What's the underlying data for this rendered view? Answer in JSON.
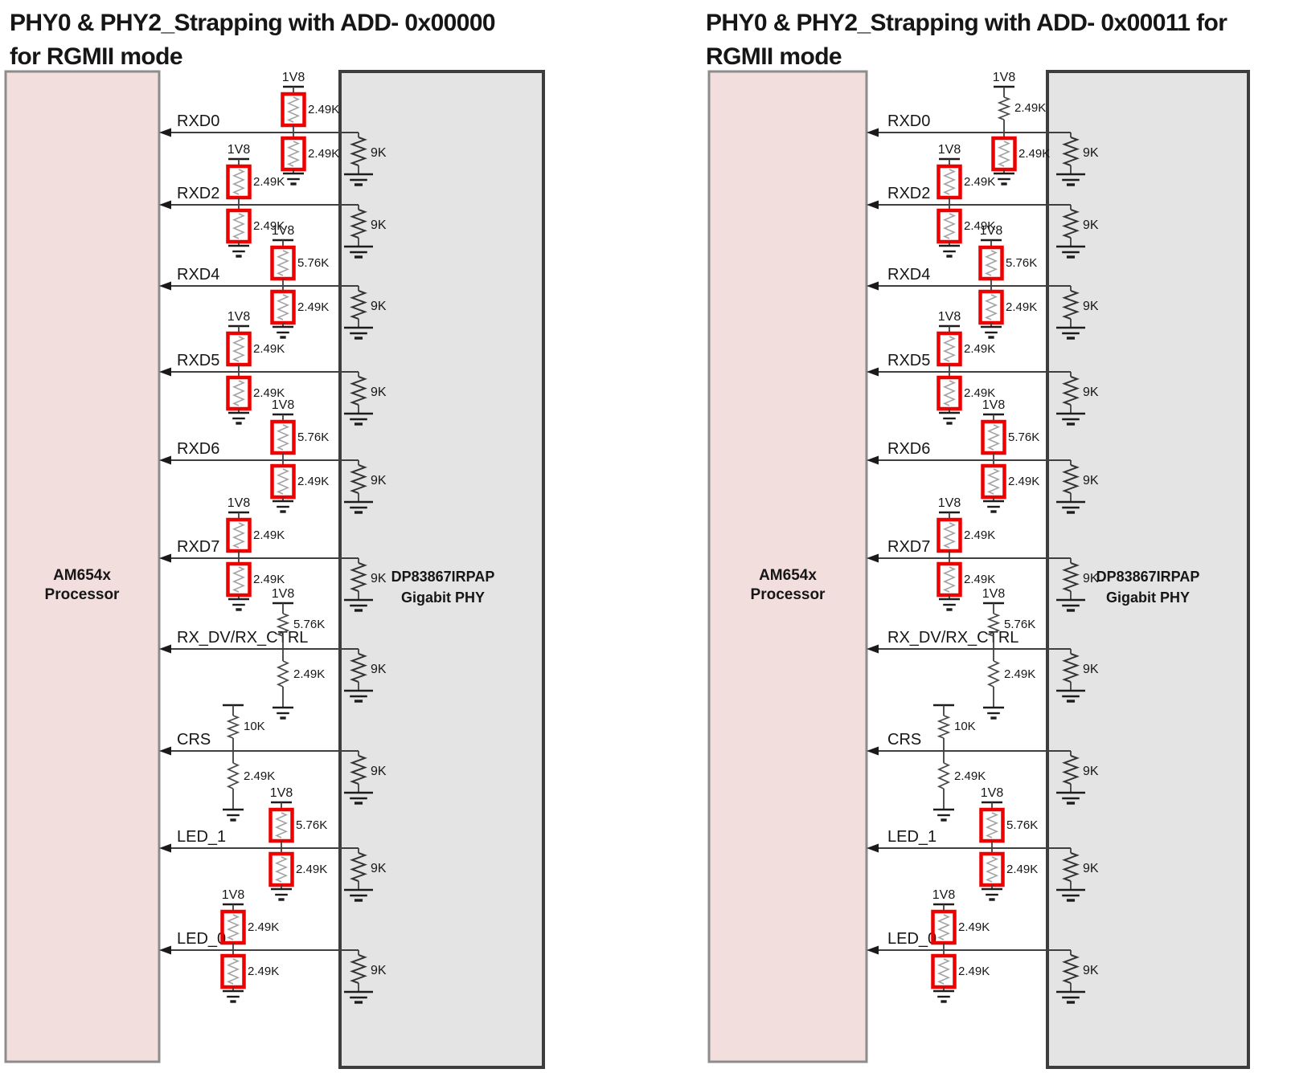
{
  "colors": {
    "processor_fill": "#f3dede",
    "processor_border": "#8c8c8c",
    "phy_fill": "#e4e4e4",
    "phy_border": "#3d3d3d",
    "highlight_box": "#ec0000",
    "wire": "#3f3f3f",
    "resistor_plain": "#4a4a4a",
    "resistor_boxed": "#a2a2a2",
    "text": "#161616"
  },
  "diagrams": [
    {
      "title_line1": "PHY0 & PHY2_Strapping with ADD- 0x00000",
      "title_line2": "for RGMII mode",
      "processor_label_line1": "AM654x",
      "processor_label_line2": "Processor",
      "phy_label_line1": "DP83867IRPAP",
      "phy_label_line2": "Gigabit PHY",
      "rows": [
        {
          "signal": "RXD0",
          "rail_label": "1V8",
          "pullup_value": "2.49K",
          "pullup_boxed": true,
          "pulldown_value": "2.49K",
          "pulldown_boxed": true,
          "phy_pull_value": "9K"
        },
        {
          "signal": "RXD2",
          "rail_label": "1V8",
          "pullup_value": "2.49K",
          "pullup_boxed": true,
          "pulldown_value": "2.49K",
          "pulldown_boxed": true,
          "phy_pull_value": "9K"
        },
        {
          "signal": "RXD4",
          "rail_label": "1V8",
          "pullup_value": "5.76K",
          "pullup_boxed": true,
          "pulldown_value": "2.49K",
          "pulldown_boxed": true,
          "phy_pull_value": "9K"
        },
        {
          "signal": "RXD5",
          "rail_label": "1V8",
          "pullup_value": "2.49K",
          "pullup_boxed": true,
          "pulldown_value": "2.49K",
          "pulldown_boxed": true,
          "phy_pull_value": "9K"
        },
        {
          "signal": "RXD6",
          "rail_label": "1V8",
          "pullup_value": "5.76K",
          "pullup_boxed": true,
          "pulldown_value": "2.49K",
          "pulldown_boxed": true,
          "phy_pull_value": "9K"
        },
        {
          "signal": "RXD7",
          "rail_label": "1V8",
          "pullup_value": "2.49K",
          "pullup_boxed": true,
          "pulldown_value": "2.49K",
          "pulldown_boxed": true,
          "phy_pull_value": "9K"
        },
        {
          "signal": "RX_DV/RX_CTRL",
          "rail_label": "1V8",
          "pullup_value": "5.76K",
          "pullup_boxed": false,
          "pulldown_value": "2.49K",
          "pulldown_boxed": false,
          "phy_pull_value": "9K"
        },
        {
          "signal": "CRS",
          "rail_label": "",
          "pullup_value": "10K",
          "pullup_boxed": false,
          "pulldown_value": "2.49K",
          "pulldown_boxed": false,
          "phy_pull_value": "9K"
        },
        {
          "signal": "LED_1",
          "rail_label": "1V8",
          "pullup_value": "5.76K",
          "pullup_boxed": true,
          "pulldown_value": "2.49K",
          "pulldown_boxed": true,
          "phy_pull_value": "9K"
        },
        {
          "signal": "LED_0",
          "rail_label": "1V8",
          "pullup_value": "2.49K",
          "pullup_boxed": true,
          "pulldown_value": "2.49K",
          "pulldown_boxed": true,
          "phy_pull_value": "9K"
        }
      ]
    },
    {
      "title_line1": "PHY0 & PHY2_Strapping with ADD- 0x00011 for",
      "title_line2": "RGMII mode",
      "processor_label_line1": "AM654x",
      "processor_label_line2": "Processor",
      "phy_label_line1": "DP83867IRPAP",
      "phy_label_line2": "Gigabit PHY",
      "rows": [
        {
          "signal": "RXD0",
          "rail_label": "1V8",
          "pullup_value": "2.49K",
          "pullup_boxed": false,
          "pulldown_value": "2.49K",
          "pulldown_boxed": true,
          "phy_pull_value": "9K"
        },
        {
          "signal": "RXD2",
          "rail_label": "1V8",
          "pullup_value": "2.49K",
          "pullup_boxed": true,
          "pulldown_value": "2.49K",
          "pulldown_boxed": true,
          "phy_pull_value": "9K"
        },
        {
          "signal": "RXD4",
          "rail_label": "1V8",
          "pullup_value": "5.76K",
          "pullup_boxed": true,
          "pulldown_value": "2.49K",
          "pulldown_boxed": true,
          "phy_pull_value": "9K"
        },
        {
          "signal": "RXD5",
          "rail_label": "1V8",
          "pullup_value": "2.49K",
          "pullup_boxed": true,
          "pulldown_value": "2.49K",
          "pulldown_boxed": true,
          "phy_pull_value": "9K"
        },
        {
          "signal": "RXD6",
          "rail_label": "1V8",
          "pullup_value": "5.76K",
          "pullup_boxed": true,
          "pulldown_value": "2.49K",
          "pulldown_boxed": true,
          "phy_pull_value": "9K"
        },
        {
          "signal": "RXD7",
          "rail_label": "1V8",
          "pullup_value": "2.49K",
          "pullup_boxed": true,
          "pulldown_value": "2.49K",
          "pulldown_boxed": true,
          "phy_pull_value": "9K"
        },
        {
          "signal": "RX_DV/RX_CTRL",
          "rail_label": "1V8",
          "pullup_value": "5.76K",
          "pullup_boxed": false,
          "pulldown_value": "2.49K",
          "pulldown_boxed": false,
          "phy_pull_value": "9K"
        },
        {
          "signal": "CRS",
          "rail_label": "",
          "pullup_value": "10K",
          "pullup_boxed": false,
          "pulldown_value": "2.49K",
          "pulldown_boxed": false,
          "phy_pull_value": "9K"
        },
        {
          "signal": "LED_1",
          "rail_label": "1V8",
          "pullup_value": "5.76K",
          "pullup_boxed": true,
          "pulldown_value": "2.49K",
          "pulldown_boxed": true,
          "phy_pull_value": "9K"
        },
        {
          "signal": "LED_0",
          "rail_label": "1V8",
          "pullup_value": "2.49K",
          "pullup_boxed": true,
          "pulldown_value": "2.49K",
          "pulldown_boxed": true,
          "phy_pull_value": "9K"
        }
      ]
    }
  ]
}
